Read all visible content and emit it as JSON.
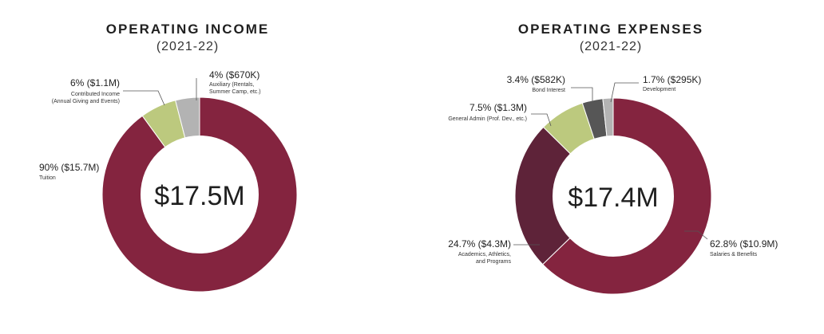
{
  "colors": {
    "maroon": "#84243f",
    "dark_maroon": "#5e2339",
    "green": "#bcc97e",
    "gray": "#b3b3b3",
    "dark_gray": "#565656",
    "hole": "#ffffff"
  },
  "chart_data": [
    {
      "type": "pie",
      "donut": true,
      "title": "OPERATING INCOME",
      "subtitle": "(2021-22)",
      "center_label": "$17.5M",
      "slices": [
        {
          "name": "Tuition",
          "percent": 90,
          "value_label": "90% ($15.7M)",
          "detail": [
            "Tuition"
          ],
          "color": "#84243f"
        },
        {
          "name": "Contributed Income",
          "percent": 6,
          "value_label": "6% ($1.1M)",
          "detail": [
            "Contributed Income",
            "(Annual Giving and Events)"
          ],
          "color": "#bcc97e"
        },
        {
          "name": "Auxiliary",
          "percent": 4,
          "value_label": "4% ($670K)",
          "detail": [
            "Auxiliary (Rentals,",
            "Summer Camp, etc.)"
          ],
          "color": "#b3b3b3"
        }
      ]
    },
    {
      "type": "pie",
      "donut": true,
      "title": "OPERATING EXPENSES",
      "subtitle": "(2021-22)",
      "center_label": "$17.4M",
      "slices": [
        {
          "name": "Salaries & Benefits",
          "percent": 62.8,
          "value_label": "62.8% ($10.9M)",
          "detail": [
            "Salaries & Benefits"
          ],
          "color": "#84243f"
        },
        {
          "name": "Academics, Athletics, and Programs",
          "percent": 24.7,
          "value_label": "24.7% ($4.3M)",
          "detail": [
            "Academics, Athletics,",
            "and Programs"
          ],
          "color": "#5e2339"
        },
        {
          "name": "General Admin",
          "percent": 7.5,
          "value_label": "7.5% ($1.3M)",
          "detail": [
            "General Admin (Prof. Dev., etc.)"
          ],
          "color": "#bcc97e"
        },
        {
          "name": "Bond Interest",
          "percent": 3.4,
          "value_label": "3.4% ($582K)",
          "detail": [
            "Bond Interest"
          ],
          "color": "#565656"
        },
        {
          "name": "Development",
          "percent": 1.7,
          "value_label": "1.7% ($295K)",
          "detail": [
            "Development"
          ],
          "color": "#b3b3b3"
        }
      ]
    }
  ]
}
